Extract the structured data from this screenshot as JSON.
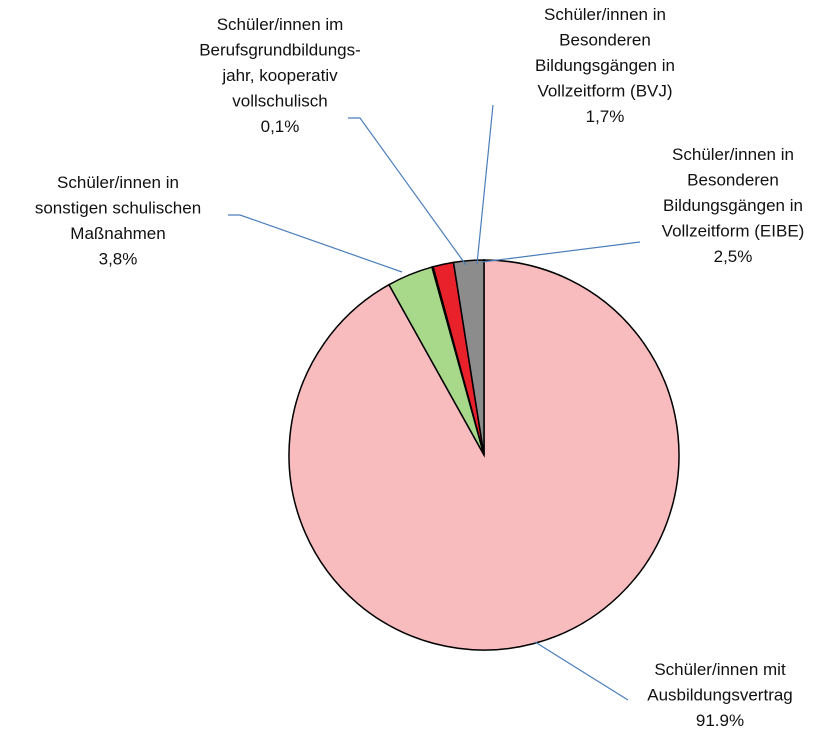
{
  "chart_data": {
    "type": "pie",
    "categories": [
      "Schüler/innen mit\nAusbildungsvertrag",
      "Schüler/innen in\nsonstigen schulischen\nMaßnahmen",
      "Schüler/innen im\nBerufsgrundbildungs-\njahr, kooperativ\nvollschulisch",
      "Schüler/innen in\nBesonderen\nBildungsgängen in\nVollzeitform (BVJ)",
      "Schüler/innen in\nBesonderen\nBildungsgängen in\nVollzeitform (EIBE)"
    ],
    "values": [
      91.9,
      3.8,
      0.1,
      1.7,
      2.5
    ],
    "value_labels": [
      "91.9%",
      "3,8%",
      "0,1%",
      "1,7%",
      "2,5%"
    ],
    "colors": [
      "#f8bcbf",
      "#a8d88a",
      "#7a1a1a",
      "#e8212a",
      "#8c8c8c"
    ]
  }
}
